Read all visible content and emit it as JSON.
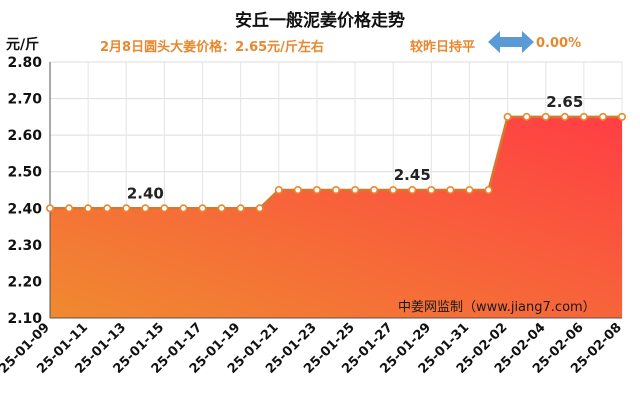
{
  "title": "安丘一般泥姜价格走势",
  "y_unit": "元/斤",
  "subtitle": {
    "price_text": "2月8日圆头大姜价格：2.65元/斤左右",
    "compare_text": "较昨日持平",
    "change_text": "0.00%"
  },
  "source": "中姜网监制（www.jiang7.com）",
  "colors": {
    "accent": "#e8882e",
    "fill_top": "#ff3e44",
    "fill_bottom": "#f08a30",
    "arrow": "#5b9bd5"
  },
  "icons": {
    "change_indicator": "double-arrow-icon"
  },
  "chart_data": {
    "type": "area",
    "ylim": [
      2.1,
      2.8
    ],
    "yticks": [
      "2.10",
      "2.20",
      "2.30",
      "2.40",
      "2.50",
      "2.60",
      "2.70",
      "2.80"
    ],
    "x": [
      "25-01-09",
      "25-01-10",
      "25-01-11",
      "25-01-12",
      "25-01-13",
      "25-01-14",
      "25-01-15",
      "25-01-16",
      "25-01-17",
      "25-01-18",
      "25-01-19",
      "25-01-20",
      "25-01-21",
      "25-01-22",
      "25-01-23",
      "25-01-24",
      "25-01-25",
      "25-01-26",
      "25-01-27",
      "25-01-28",
      "25-01-29",
      "25-01-30",
      "25-01-31",
      "25-02-01",
      "25-02-02",
      "25-02-03",
      "25-02-04",
      "25-02-05",
      "25-02-06",
      "25-02-07",
      "25-02-08"
    ],
    "xtick_labels": [
      "25-01-09",
      "25-01-11",
      "25-01-13",
      "25-01-15",
      "25-01-17",
      "25-01-19",
      "25-01-21",
      "25-01-23",
      "25-01-25",
      "25-01-27",
      "25-01-29",
      "25-01-31",
      "25-02-02",
      "25-02-04",
      "25-02-06",
      "25-02-08"
    ],
    "values": [
      2.4,
      2.4,
      2.4,
      2.4,
      2.4,
      2.4,
      2.4,
      2.4,
      2.4,
      2.4,
      2.4,
      2.4,
      2.45,
      2.45,
      2.45,
      2.45,
      2.45,
      2.45,
      2.45,
      2.45,
      2.45,
      2.45,
      2.45,
      2.45,
      2.65,
      2.65,
      2.65,
      2.65,
      2.65,
      2.65,
      2.65
    ],
    "annotations": [
      {
        "index": 5,
        "text": "2.40"
      },
      {
        "index": 19,
        "text": "2.45"
      },
      {
        "index": 27,
        "text": "2.65"
      }
    ]
  }
}
